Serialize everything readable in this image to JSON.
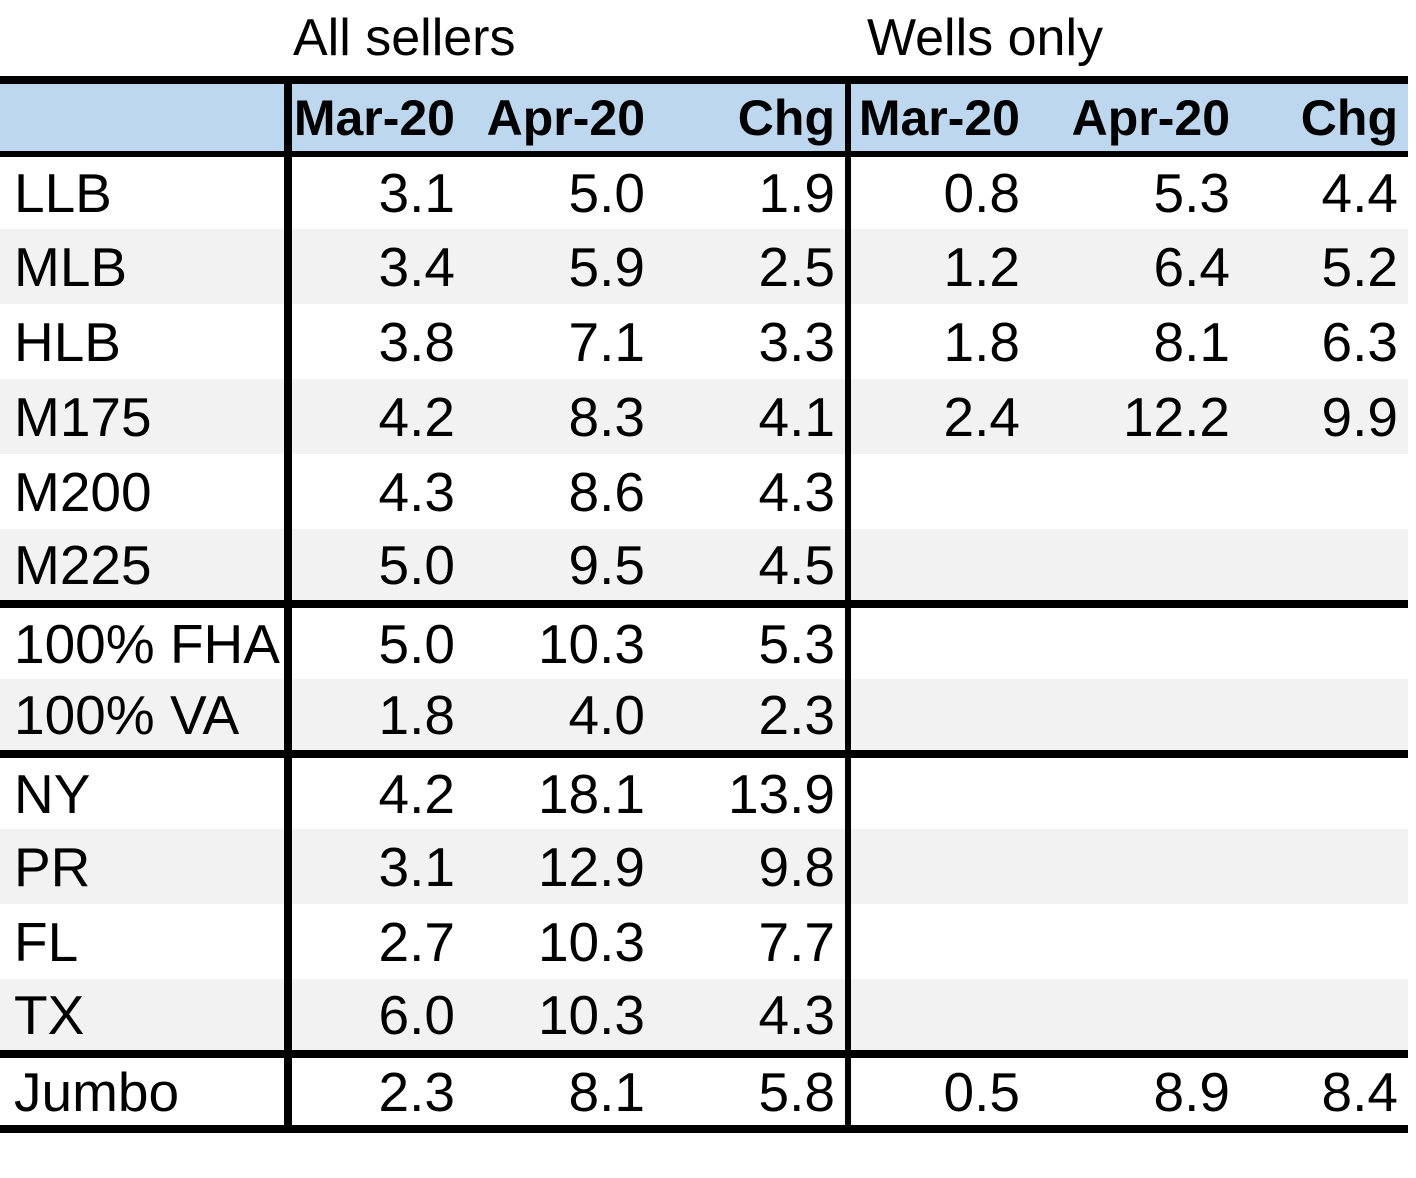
{
  "titles": {
    "all_sellers": "All sellers",
    "wells_only": "Wells only"
  },
  "header": {
    "corner_label": "",
    "labels": [
      "Mar-20",
      "Apr-20",
      "Chg",
      "Mar-20",
      "Apr-20",
      "Chg"
    ]
  },
  "colors": {
    "header_bg": "#BDD7EE",
    "stripe_bg": "#F2F2F2",
    "border": "#000000",
    "text": "#000000"
  },
  "chart_data": {
    "type": "table",
    "column_groups": [
      {
        "name": "All sellers",
        "columns": [
          "Mar-20",
          "Apr-20",
          "Chg"
        ]
      },
      {
        "name": "Wells only",
        "columns": [
          "Mar-20",
          "Apr-20",
          "Chg"
        ]
      }
    ],
    "sections": [
      [
        "LLB",
        "MLB",
        "HLB",
        "M175",
        "M200",
        "M225"
      ],
      [
        "100% FHA",
        "100% VA"
      ],
      [
        "NY",
        "PR",
        "FL",
        "TX"
      ],
      [
        "Jumbo"
      ]
    ],
    "rows": [
      {
        "label": "LLB",
        "all_sellers": [
          "3.1",
          "5.0",
          "1.9"
        ],
        "wells_only": [
          "0.8",
          "5.3",
          "4.4"
        ],
        "section_end": false
      },
      {
        "label": "MLB",
        "all_sellers": [
          "3.4",
          "5.9",
          "2.5"
        ],
        "wells_only": [
          "1.2",
          "6.4",
          "5.2"
        ],
        "section_end": false
      },
      {
        "label": "HLB",
        "all_sellers": [
          "3.8",
          "7.1",
          "3.3"
        ],
        "wells_only": [
          "1.8",
          "8.1",
          "6.3"
        ],
        "section_end": false
      },
      {
        "label": "M175",
        "all_sellers": [
          "4.2",
          "8.3",
          "4.1"
        ],
        "wells_only": [
          "2.4",
          "12.2",
          "9.9"
        ],
        "section_end": false
      },
      {
        "label": "M200",
        "all_sellers": [
          "4.3",
          "8.6",
          "4.3"
        ],
        "wells_only": [
          "",
          "",
          ""
        ],
        "section_end": false
      },
      {
        "label": "M225",
        "all_sellers": [
          "5.0",
          "9.5",
          "4.5"
        ],
        "wells_only": [
          "",
          "",
          ""
        ],
        "section_end": true
      },
      {
        "label": "100% FHA",
        "all_sellers": [
          "5.0",
          "10.3",
          "5.3"
        ],
        "wells_only": [
          "",
          "",
          ""
        ],
        "section_end": false
      },
      {
        "label": "100% VA",
        "all_sellers": [
          "1.8",
          "4.0",
          "2.3"
        ],
        "wells_only": [
          "",
          "",
          ""
        ],
        "section_end": true
      },
      {
        "label": "NY",
        "all_sellers": [
          "4.2",
          "18.1",
          "13.9"
        ],
        "wells_only": [
          "",
          "",
          ""
        ],
        "section_end": false
      },
      {
        "label": "PR",
        "all_sellers": [
          "3.1",
          "12.9",
          "9.8"
        ],
        "wells_only": [
          "",
          "",
          ""
        ],
        "section_end": false
      },
      {
        "label": "FL",
        "all_sellers": [
          "2.7",
          "10.3",
          "7.7"
        ],
        "wells_only": [
          "",
          "",
          ""
        ],
        "section_end": false
      },
      {
        "label": "TX",
        "all_sellers": [
          "6.0",
          "10.3",
          "4.3"
        ],
        "wells_only": [
          "",
          "",
          ""
        ],
        "section_end": true
      },
      {
        "label": "Jumbo",
        "all_sellers": [
          "2.3",
          "8.1",
          "5.8"
        ],
        "wells_only": [
          "0.5",
          "8.9",
          "8.4"
        ],
        "section_end": false
      }
    ]
  }
}
